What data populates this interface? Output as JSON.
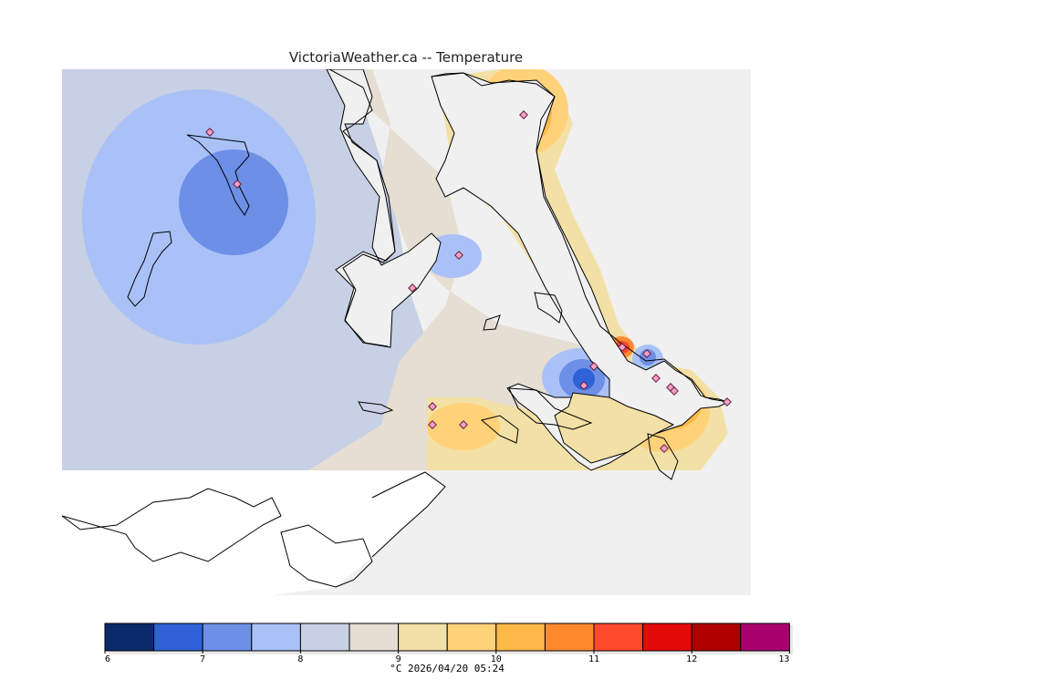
{
  "title": "VictoriaWeather.ca -- Temperature",
  "legend": {
    "colors": [
      "#0b2a6b",
      "#2e62d6",
      "#6d8fe6",
      "#a9c1f7",
      "#c8d0e5",
      "#e6ddd3",
      "#f3e0a6",
      "#ffd27a",
      "#ffb84a",
      "#ff8a2e",
      "#ff4a2e",
      "#e30a0a",
      "#b00000",
      "#a8006e"
    ],
    "tick_labels": [
      "6",
      "7",
      "8",
      "9",
      "10",
      "11",
      "12",
      "13"
    ],
    "caption": "°C  2026/04/20 05:24"
  },
  "colors": {
    "land": "#f0f0f0",
    "water_unmapped": "#ffffff",
    "coast": "#000000",
    "station": "#f2a0c8"
  }
}
